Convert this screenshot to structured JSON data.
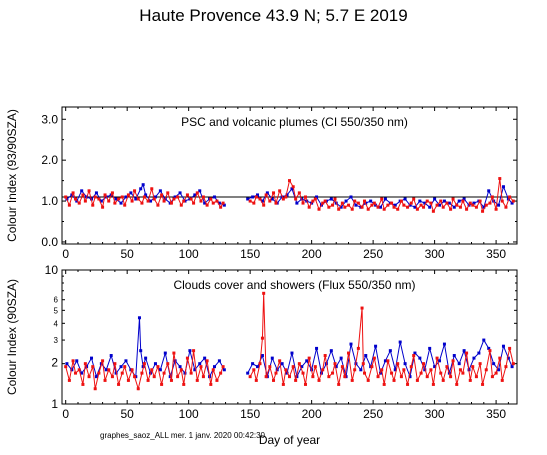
{
  "header": {
    "title": "Haute Provence  43.9 N; 5.7 E   2019"
  },
  "footer": {
    "note": "graphes_saoz_ALL  mer. 1 janv. 2020 00:42:30"
  },
  "colors": {
    "series_blue": "#0000cc",
    "series_red": "#ee1111",
    "reference_line": "#000000"
  },
  "chart_data": [
    {
      "type": "line",
      "annotation": "PSC and volcanic plumes (CI 550/350 nm)",
      "xlabel": "",
      "ylabel": "Colour Index (93/90SZA)",
      "xlim": [
        -3,
        367
      ],
      "ylim": [
        -0.05,
        3.3
      ],
      "xticks": [
        0,
        50,
        100,
        150,
        200,
        250,
        300,
        350
      ],
      "yticks": [
        "0.0",
        "1.0",
        "2.0",
        "3.0"
      ],
      "reference_line": 1.1,
      "grid": false,
      "series": [
        {
          "color": "#0000cc",
          "x": [
            1,
            5,
            9,
            13,
            17,
            21,
            25,
            29,
            33,
            37,
            41,
            45,
            49,
            53,
            57,
            61,
            63,
            65,
            69,
            73,
            77,
            81,
            85,
            89,
            93,
            97,
            101,
            105,
            109,
            113,
            117,
            121,
            125,
            129,
            148,
            152,
            156,
            160,
            164,
            168,
            172,
            176,
            180,
            184,
            188,
            192,
            196,
            200,
            204,
            208,
            212,
            216,
            220,
            224,
            228,
            232,
            236,
            240,
            244,
            248,
            252,
            256,
            260,
            264,
            268,
            272,
            276,
            280,
            284,
            288,
            292,
            296,
            300,
            304,
            308,
            312,
            316,
            320,
            324,
            328,
            332,
            336,
            340,
            344,
            348,
            352,
            356,
            360,
            363
          ],
          "values": [
            1.05,
            1.15,
            1.0,
            1.25,
            1.1,
            1.05,
            1.2,
            1.0,
            1.1,
            1.15,
            1.05,
            0.95,
            1.1,
            1.2,
            1.05,
            1.3,
            1.4,
            1.15,
            1.0,
            1.1,
            1.25,
            1.05,
            0.95,
            1.1,
            1.2,
            1.0,
            1.05,
            1.15,
            1.25,
            0.95,
            1.05,
            1.1,
            0.95,
            0.9,
            1.05,
            1.1,
            1.15,
            1.0,
            1.2,
            1.05,
            0.95,
            1.1,
            1.15,
            1.3,
            0.95,
            1.05,
            1.0,
            0.95,
            1.1,
            0.9,
            1.0,
            1.05,
            0.95,
            0.85,
            1.0,
            1.1,
            0.9,
            0.85,
            0.95,
            1.0,
            0.9,
            0.85,
            1.05,
            0.95,
            0.9,
            1.0,
            1.05,
            0.9,
            0.85,
            1.0,
            0.95,
            0.85,
            1.05,
            0.9,
            1.0,
            0.95,
            0.85,
            1.0,
            1.05,
            0.9,
            0.95,
            1.0,
            0.85,
            1.25,
            1.0,
            0.9,
            1.35,
            1.05,
            0.95
          ]
        },
        {
          "color": "#ee1111",
          "x": [
            0,
            3,
            6,
            8,
            11,
            14,
            16,
            19,
            22,
            24,
            27,
            30,
            32,
            35,
            38,
            40,
            43,
            46,
            48,
            51,
            54,
            56,
            59,
            62,
            64,
            67,
            70,
            72,
            75,
            78,
            80,
            83,
            86,
            88,
            91,
            94,
            96,
            99,
            102,
            104,
            107,
            110,
            112,
            115,
            118,
            120,
            123,
            126,
            128,
            150,
            153,
            155,
            158,
            161,
            163,
            166,
            169,
            171,
            174,
            177,
            179,
            182,
            185,
            187,
            190,
            193,
            195,
            198,
            201,
            203,
            206,
            209,
            211,
            214,
            217,
            219,
            222,
            225,
            227,
            230,
            233,
            235,
            238,
            241,
            243,
            246,
            249,
            251,
            254,
            257,
            259,
            262,
            265,
            267,
            270,
            273,
            275,
            278,
            281,
            283,
            286,
            289,
            291,
            294,
            297,
            299,
            302,
            305,
            307,
            310,
            313,
            315,
            318,
            321,
            323,
            326,
            329,
            331,
            334,
            337,
            339,
            342,
            345,
            347,
            350,
            353,
            355,
            358,
            361,
            364
          ],
          "values": [
            1.1,
            0.9,
            1.2,
            1.05,
            0.95,
            1.15,
            1.0,
            1.25,
            0.9,
            1.1,
            1.05,
            0.85,
            1.15,
            1.0,
            1.2,
            0.95,
            1.05,
            1.1,
            0.9,
            1.15,
            1.0,
            1.25,
            1.05,
            0.95,
            1.1,
            1.0,
            1.3,
            1.05,
            0.9,
            1.15,
            1.0,
            1.2,
            0.95,
            1.05,
            1.1,
            0.9,
            1.0,
            1.15,
            1.05,
            0.95,
            1.2,
            1.0,
            1.1,
            0.9,
            1.05,
            0.95,
            1.0,
            0.85,
            0.95,
            1.0,
            0.95,
            1.1,
            1.05,
            0.9,
            1.15,
            1.0,
            1.2,
            0.95,
            1.25,
            1.05,
            1.1,
            1.5,
            1.35,
            1.05,
            1.2,
            0.95,
            1.1,
            0.85,
            1.0,
            1.05,
            0.8,
            0.95,
            1.0,
            0.85,
            0.9,
            1.05,
            0.8,
            0.95,
            0.85,
            0.9,
            0.8,
            1.0,
            0.95,
            0.85,
            1.0,
            0.8,
            0.9,
            0.95,
            0.85,
            1.05,
            0.8,
            0.9,
            0.95,
            0.85,
            0.8,
            1.0,
            0.9,
            0.85,
            0.95,
            1.05,
            0.8,
            0.9,
            0.85,
            1.0,
            0.95,
            0.75,
            0.9,
            1.0,
            0.85,
            0.95,
            0.8,
            1.05,
            0.9,
            0.85,
            1.0,
            0.8,
            0.95,
            0.9,
            0.85,
            1.0,
            0.75,
            0.9,
            0.95,
            1.1,
            0.8,
            1.55,
            1.0,
            0.85,
            1.1,
            1.0
          ]
        }
      ]
    },
    {
      "type": "line",
      "annotation": "Clouds cover and showers (Flux 550/350 nm)",
      "xlabel": "Day of year",
      "ylabel": "Colour Index (90SZA)",
      "xlim": [
        -3,
        367
      ],
      "ylim": [
        1,
        10
      ],
      "yscale": "log",
      "xticks": [
        0,
        50,
        100,
        150,
        200,
        250,
        300,
        350
      ],
      "yticks_major": [
        1,
        10
      ],
      "yticks_minor": [
        2,
        3,
        4,
        5,
        6
      ],
      "grid": false,
      "series": [
        {
          "color": "#0000cc",
          "x": [
            1,
            5,
            9,
            13,
            17,
            21,
            25,
            29,
            33,
            37,
            41,
            45,
            49,
            53,
            57,
            60,
            61,
            63,
            65,
            69,
            73,
            77,
            81,
            85,
            89,
            93,
            97,
            101,
            105,
            109,
            113,
            117,
            121,
            125,
            129,
            148,
            152,
            156,
            160,
            164,
            168,
            172,
            176,
            180,
            184,
            188,
            192,
            196,
            200,
            204,
            208,
            212,
            216,
            220,
            224,
            228,
            232,
            236,
            240,
            244,
            248,
            252,
            256,
            260,
            264,
            268,
            272,
            276,
            280,
            284,
            288,
            292,
            296,
            300,
            304,
            308,
            312,
            316,
            320,
            324,
            328,
            332,
            336,
            340,
            344,
            348,
            352,
            356,
            360,
            363
          ],
          "values": [
            2.0,
            1.8,
            2.1,
            1.7,
            1.9,
            2.2,
            1.6,
            2.0,
            1.8,
            2.3,
            1.7,
            1.9,
            2.1,
            1.8,
            1.6,
            4.4,
            2.5,
            1.9,
            2.2,
            1.7,
            2.0,
            1.8,
            2.4,
            1.6,
            2.1,
            1.9,
            1.7,
            2.5,
            1.8,
            2.0,
            2.2,
            1.6,
            1.9,
            2.1,
            1.8,
            1.7,
            2.0,
            1.9,
            2.3,
            1.6,
            2.2,
            1.8,
            2.0,
            1.7,
            2.4,
            1.6,
            1.9,
            2.1,
            1.8,
            2.6,
            1.7,
            2.0,
            2.5,
            1.9,
            2.2,
            1.6,
            2.8,
            2.0,
            1.8,
            2.3,
            1.9,
            2.7,
            1.7,
            2.1,
            2.5,
            1.8,
            2.9,
            2.0,
            1.6,
            2.4,
            2.2,
            1.8,
            2.6,
            1.9,
            2.1,
            2.8,
            1.7,
            2.3,
            2.0,
            2.5,
            1.8,
            2.2,
            2.4,
            3.0,
            2.6,
            2.0,
            1.8,
            2.7,
            2.2,
            1.9
          ]
        },
        {
          "color": "#ee1111",
          "x": [
            0,
            3,
            6,
            8,
            11,
            14,
            16,
            19,
            22,
            24,
            27,
            30,
            32,
            35,
            38,
            40,
            43,
            46,
            48,
            51,
            54,
            56,
            59,
            62,
            64,
            67,
            70,
            72,
            75,
            78,
            80,
            83,
            86,
            88,
            91,
            94,
            96,
            99,
            102,
            104,
            107,
            110,
            112,
            115,
            118,
            120,
            123,
            126,
            128,
            150,
            153,
            155,
            158,
            160,
            161,
            163,
            166,
            169,
            171,
            174,
            177,
            179,
            182,
            185,
            187,
            190,
            193,
            195,
            198,
            201,
            203,
            206,
            209,
            211,
            214,
            217,
            219,
            222,
            225,
            227,
            230,
            233,
            235,
            238,
            241,
            242,
            243,
            246,
            249,
            251,
            254,
            257,
            259,
            262,
            265,
            267,
            270,
            273,
            275,
            278,
            281,
            283,
            286,
            289,
            291,
            294,
            297,
            299,
            302,
            305,
            307,
            310,
            313,
            315,
            318,
            321,
            323,
            326,
            329,
            331,
            334,
            337,
            339,
            342,
            345,
            347,
            350,
            353,
            355,
            358,
            361,
            364
          ],
          "values": [
            1.9,
            1.5,
            2.1,
            1.7,
            1.8,
            1.4,
            2.0,
            1.6,
            1.9,
            1.3,
            1.7,
            2.1,
            1.5,
            1.8,
            1.6,
            2.0,
            1.4,
            1.7,
            1.9,
            1.5,
            1.8,
            1.6,
            1.3,
            1.7,
            2.0,
            1.5,
            1.8,
            1.6,
            1.9,
            1.4,
            1.7,
            2.0,
            1.5,
            2.4,
            1.6,
            1.8,
            1.4,
            2.2,
            1.7,
            2.5,
            1.5,
            1.9,
            1.6,
            2.1,
            1.4,
            1.8,
            1.5,
            1.7,
            1.9,
            1.6,
            1.8,
            1.5,
            2.0,
            3.1,
            6.7,
            1.6,
            1.9,
            1.5,
            1.7,
            2.1,
            1.4,
            1.8,
            1.6,
            1.9,
            1.5,
            2.0,
            1.7,
            1.4,
            2.2,
            1.6,
            1.9,
            1.5,
            1.8,
            2.3,
            1.6,
            1.7,
            2.0,
            1.4,
            1.9,
            1.6,
            2.4,
            1.5,
            1.8,
            2.6,
            5.2,
            2.0,
            1.7,
            1.5,
            1.9,
            2.2,
            1.6,
            1.8,
            1.4,
            2.1,
            1.7,
            1.5,
            2.0,
            1.6,
            1.8,
            1.4,
            1.9,
            2.3,
            1.5,
            1.7,
            2.0,
            1.6,
            1.8,
            1.4,
            2.2,
            1.7,
            1.5,
            1.9,
            1.6,
            2.1,
            1.4,
            1.8,
            1.7,
            2.4,
            1.5,
            1.9,
            1.6,
            2.0,
            1.4,
            1.8,
            2.5,
            1.6,
            1.7,
            2.2,
            1.5,
            1.9,
            2.6,
            2.0
          ]
        }
      ]
    }
  ]
}
